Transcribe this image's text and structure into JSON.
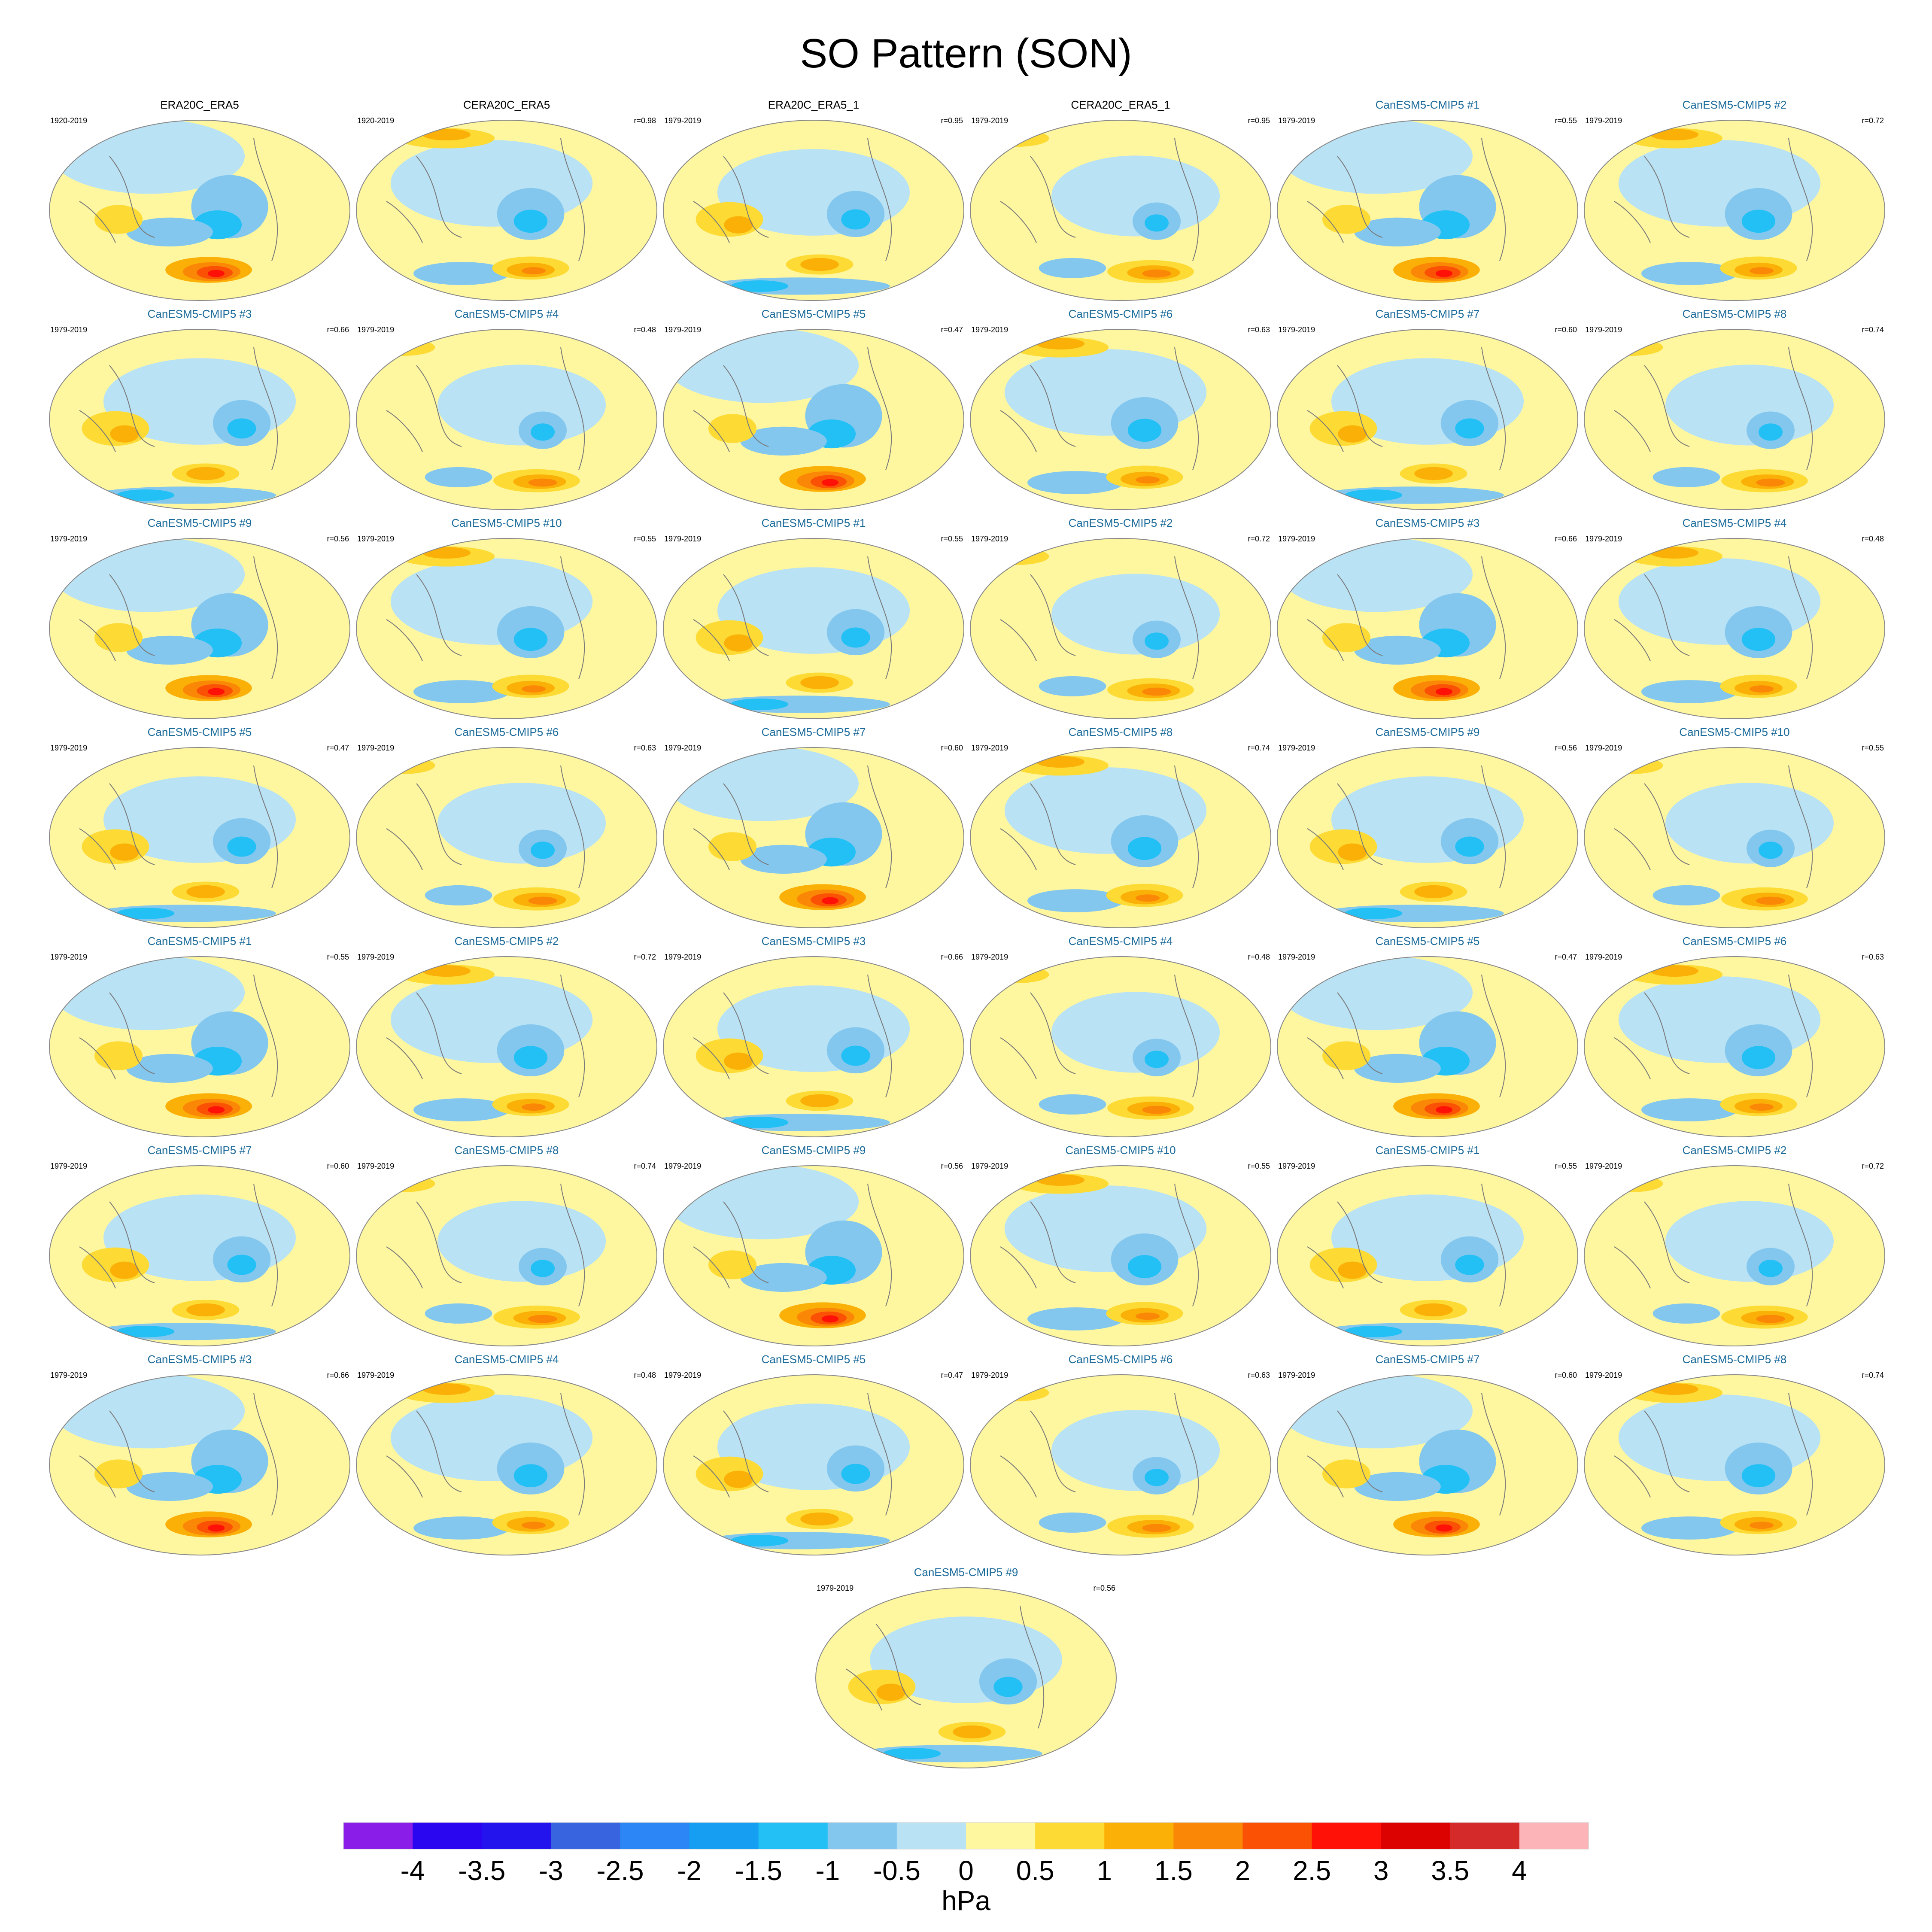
{
  "title": "SO Pattern (SON)",
  "chart_data": {
    "type": "heatmap",
    "title": "SO Pattern (SON)",
    "projection": "Robinson (global)",
    "colorbar": {
      "unit": "hPa",
      "levels": [
        "-4",
        "-3.5",
        "-3",
        "-2.5",
        "-2",
        "-1.5",
        "-1",
        "-0.5",
        "0",
        "0.5",
        "1",
        "1.5",
        "2",
        "2.5",
        "3",
        "3.5",
        "4"
      ],
      "colors": [
        "#8a1ee8",
        "#2a06f0",
        "#2314ee",
        "#3964e0",
        "#2c86f5",
        "#159ef2",
        "#22c0f5",
        "#84c7ee",
        "#b9e2f4",
        "#fef7a0",
        "#fddb34",
        "#fbb007",
        "#fb8707",
        "#fa5105",
        "#ff1108",
        "#dc0202",
        "#d42a2a",
        "#fcb4b8"
      ]
    },
    "panels": [
      {
        "label": "ERA20C_ERA5",
        "period": "1920-2019",
        "r": "",
        "obs": true
      },
      {
        "label": "CERA20C_ERA5",
        "period": "1920-2019",
        "r": "r=0.98",
        "obs": true
      },
      {
        "label": "ERA20C_ERA5_1",
        "period": "1979-2019",
        "r": "r=0.95",
        "obs": true
      },
      {
        "label": "CERA20C_ERA5_1",
        "period": "1979-2019",
        "r": "r=0.95",
        "obs": true
      },
      {
        "label": "CanESM5-CMIP5 #1",
        "period": "1979-2019",
        "r": "r=0.55",
        "obs": false
      },
      {
        "label": "CanESM5-CMIP5 #2",
        "period": "1979-2019",
        "r": "r=0.72",
        "obs": false
      },
      {
        "label": "CanESM5-CMIP5 #3",
        "period": "1979-2019",
        "r": "r=0.66",
        "obs": false
      },
      {
        "label": "CanESM5-CMIP5 #4",
        "period": "1979-2019",
        "r": "r=0.48",
        "obs": false
      },
      {
        "label": "CanESM5-CMIP5 #5",
        "period": "1979-2019",
        "r": "r=0.47",
        "obs": false
      },
      {
        "label": "CanESM5-CMIP5 #6",
        "period": "1979-2019",
        "r": "r=0.63",
        "obs": false
      },
      {
        "label": "CanESM5-CMIP5 #7",
        "period": "1979-2019",
        "r": "r=0.60",
        "obs": false
      },
      {
        "label": "CanESM5-CMIP5 #8",
        "period": "1979-2019",
        "r": "r=0.74",
        "obs": false
      },
      {
        "label": "CanESM5-CMIP5 #9",
        "period": "1979-2019",
        "r": "r=0.56",
        "obs": false
      },
      {
        "label": "CanESM5-CMIP5 #10",
        "period": "1979-2019",
        "r": "r=0.55",
        "obs": false
      },
      {
        "label": "CanESM5-CMIP5 #1",
        "period": "1979-2019",
        "r": "r=0.55",
        "obs": false
      },
      {
        "label": "CanESM5-CMIP5 #2",
        "period": "1979-2019",
        "r": "r=0.72",
        "obs": false
      },
      {
        "label": "CanESM5-CMIP5 #3",
        "period": "1979-2019",
        "r": "r=0.66",
        "obs": false
      },
      {
        "label": "CanESM5-CMIP5 #4",
        "period": "1979-2019",
        "r": "r=0.48",
        "obs": false
      },
      {
        "label": "CanESM5-CMIP5 #5",
        "period": "1979-2019",
        "r": "r=0.47",
        "obs": false
      },
      {
        "label": "CanESM5-CMIP5 #6",
        "period": "1979-2019",
        "r": "r=0.63",
        "obs": false
      },
      {
        "label": "CanESM5-CMIP5 #7",
        "period": "1979-2019",
        "r": "r=0.60",
        "obs": false
      },
      {
        "label": "CanESM5-CMIP5 #8",
        "period": "1979-2019",
        "r": "r=0.74",
        "obs": false
      },
      {
        "label": "CanESM5-CMIP5 #9",
        "period": "1979-2019",
        "r": "r=0.56",
        "obs": false
      },
      {
        "label": "CanESM5-CMIP5 #10",
        "period": "1979-2019",
        "r": "r=0.55",
        "obs": false
      },
      {
        "label": "CanESM5-CMIP5 #1",
        "period": "1979-2019",
        "r": "r=0.55",
        "obs": false
      },
      {
        "label": "CanESM5-CMIP5 #2",
        "period": "1979-2019",
        "r": "r=0.72",
        "obs": false
      },
      {
        "label": "CanESM5-CMIP5 #3",
        "period": "1979-2019",
        "r": "r=0.66",
        "obs": false
      },
      {
        "label": "CanESM5-CMIP5 #4",
        "period": "1979-2019",
        "r": "r=0.48",
        "obs": false
      },
      {
        "label": "CanESM5-CMIP5 #5",
        "period": "1979-2019",
        "r": "r=0.47",
        "obs": false
      },
      {
        "label": "CanESM5-CMIP5 #6",
        "period": "1979-2019",
        "r": "r=0.63",
        "obs": false
      },
      {
        "label": "CanESM5-CMIP5 #7",
        "period": "1979-2019",
        "r": "r=0.60",
        "obs": false
      },
      {
        "label": "CanESM5-CMIP5 #8",
        "period": "1979-2019",
        "r": "r=0.74",
        "obs": false
      },
      {
        "label": "CanESM5-CMIP5 #9",
        "period": "1979-2019",
        "r": "r=0.56",
        "obs": false
      },
      {
        "label": "CanESM5-CMIP5 #10",
        "period": "1979-2019",
        "r": "r=0.55",
        "obs": false
      },
      {
        "label": "CanESM5-CMIP5 #1",
        "period": "1979-2019",
        "r": "r=0.55",
        "obs": false
      },
      {
        "label": "CanESM5-CMIP5 #2",
        "period": "1979-2019",
        "r": "r=0.72",
        "obs": false
      },
      {
        "label": "CanESM5-CMIP5 #3",
        "period": "1979-2019",
        "r": "r=0.66",
        "obs": false
      },
      {
        "label": "CanESM5-CMIP5 #4",
        "period": "1979-2019",
        "r": "r=0.48",
        "obs": false
      },
      {
        "label": "CanESM5-CMIP5 #5",
        "period": "1979-2019",
        "r": "r=0.47",
        "obs": false
      },
      {
        "label": "CanESM5-CMIP5 #6",
        "period": "1979-2019",
        "r": "r=0.63",
        "obs": false
      },
      {
        "label": "CanESM5-CMIP5 #7",
        "period": "1979-2019",
        "r": "r=0.60",
        "obs": false
      },
      {
        "label": "CanESM5-CMIP5 #8",
        "period": "1979-2019",
        "r": "r=0.74",
        "obs": false
      },
      {
        "label": "CanESM5-CMIP5 #9",
        "period": "1979-2019",
        "r": "r=0.56",
        "obs": false
      }
    ]
  },
  "style": {
    "obs_label_color": "#000000",
    "model_label_color": "#1a6a9a",
    "map_background": "#fef7a0",
    "coast_color": "#7a7a7a",
    "blob_palette": {
      "lightblue": "#b9e2f4",
      "midblue": "#84c7ee",
      "blue": "#22c0f5",
      "deepblue": "#159ef2",
      "darkblue": "#2c86f5",
      "yellow": "#fddb34",
      "orange": "#fbb007",
      "darkorange": "#fb8707",
      "red": "#fa5105",
      "deepred": "#ff1108"
    }
  }
}
